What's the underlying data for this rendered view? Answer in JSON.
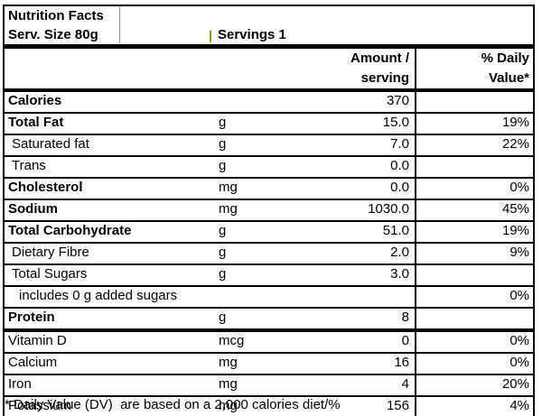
{
  "label": {
    "title": "Nutrition Facts",
    "serving_size": "Serv. Size 80g",
    "servings": "Servings 1",
    "columns": {
      "amount_line1": "Amount /",
      "amount_line2": "serving",
      "dv_line1": "% Daily",
      "dv_line2": "Value*"
    },
    "rows": [
      {
        "name": "Calories",
        "unit": "",
        "amount": "370",
        "dv": ""
      },
      {
        "name": "Total Fat",
        "unit": "g",
        "amount": "15.0",
        "dv": "19%"
      },
      {
        "name": "Saturated fat",
        "unit": "g",
        "amount": "7.0",
        "dv": "22%"
      },
      {
        "name": "Trans",
        "unit": "g",
        "amount": "0.0",
        "dv": ""
      },
      {
        "name": "Cholesterol",
        "unit": "mg",
        "amount": "0.0",
        "dv": "0%"
      },
      {
        "name": "Sodium",
        "unit": "mg",
        "amount": "1030.0",
        "dv": "45%"
      },
      {
        "name": "Total Carbohydrate",
        "unit": "g",
        "amount": "51.0",
        "dv": "19%"
      },
      {
        "name": "Dietary Fibre",
        "unit": "g",
        "amount": "2.0",
        "dv": "9%"
      },
      {
        "name": "Total Sugars",
        "unit": "g",
        "amount": "3.0",
        "dv": ""
      },
      {
        "name": "includes 0 g added sugars",
        "unit": "",
        "amount": "",
        "dv": "0%"
      },
      {
        "name": "Protein",
        "unit": "g",
        "amount": "8",
        "dv": ""
      },
      {
        "name": "Vitamin D",
        "unit": "mcg",
        "amount": "0",
        "dv": "0%"
      },
      {
        "name": "Calcium",
        "unit": "mg",
        "amount": "16",
        "dv": "0%"
      },
      {
        "name": "Iron",
        "unit": "mg",
        "amount": "4",
        "dv": "20%"
      },
      {
        "name": "Potassium",
        "unit": "mg",
        "amount": "156",
        "dv": "4%"
      }
    ],
    "footnote": "* Daily Value (DV)  are based on a 2,000 calories diet/%"
  },
  "colors": {
    "border": "#000000",
    "text": "#000000",
    "background": "#ffffff"
  }
}
